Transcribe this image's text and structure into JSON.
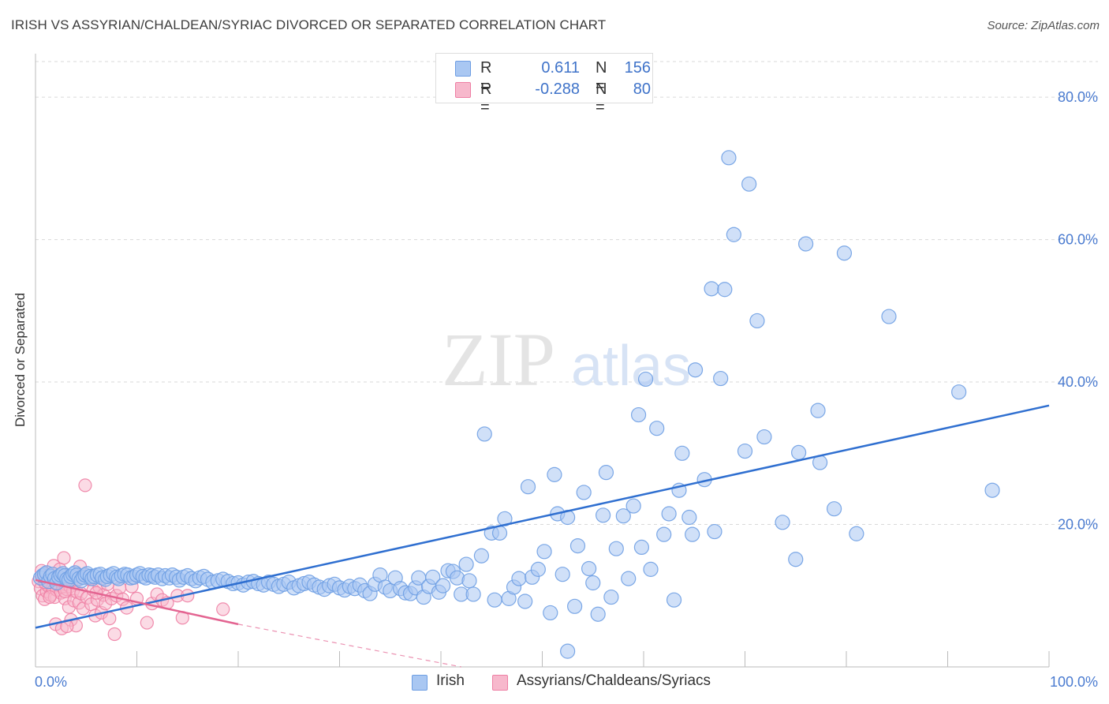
{
  "header": {
    "title": "IRISH VS ASSYRIAN/CHALDEAN/SYRIAC DIVORCED OR SEPARATED CORRELATION CHART",
    "source": "Source: ZipAtlas.com"
  },
  "watermark": {
    "zip": "ZIP",
    "atlas": "atlas"
  },
  "legend": {
    "rows": [
      {
        "r_label": "R =",
        "r_value": "0.611",
        "n_label": "N =",
        "n_value": "156"
      },
      {
        "r_label": "R =",
        "r_value": "-0.288",
        "n_label": "N =",
        "n_value": "80"
      }
    ]
  },
  "bottom_legend": {
    "series1": "Irish",
    "series2": "Assyrians/Chaldeans/Syriacs"
  },
  "colors": {
    "irish_fill": "#a9c7f2",
    "irish_stroke": "#6e9ee3",
    "irish_line": "#2f6fd0",
    "assyrian_fill": "#f7b8cc",
    "assyrian_stroke": "#ee7fa4",
    "assyrian_line": "#e36491",
    "grid": "#d9d9d9",
    "tick_text": "#4a7bd0"
  },
  "chart_data": {
    "type": "scatter",
    "title": "IRISH VS ASSYRIAN/CHALDEAN/SYRIAC DIVORCED OR SEPARATED CORRELATION CHART",
    "xlabel": "",
    "ylabel": "Divorced or Separated",
    "xlim": [
      0,
      100
    ],
    "ylim": [
      0,
      85
    ],
    "x_tick_labels": [
      "0.0%",
      "100.0%"
    ],
    "y_ticks": [
      20,
      40,
      60,
      80
    ],
    "y_tick_labels": [
      "20.0%",
      "40.0%",
      "60.0%",
      "80.0%"
    ],
    "grid": true,
    "legend_position": "top-center",
    "series": [
      {
        "name": "Irish",
        "trendline": [
          [
            0,
            5.5
          ],
          [
            100,
            36.7
          ]
        ],
        "points": [
          [
            0.5,
            12.5
          ],
          [
            0.7,
            12.8
          ],
          [
            0.9,
            13.0
          ],
          [
            1.1,
            13.2
          ],
          [
            1.3,
            12.0
          ],
          [
            1.5,
            12.7
          ],
          [
            1.7,
            13.0
          ],
          [
            1.9,
            12.4
          ],
          [
            2.1,
            11.8
          ],
          [
            2.3,
            12.6
          ],
          [
            2.5,
            12.9
          ],
          [
            2.7,
            13.1
          ],
          [
            2.9,
            12.8
          ],
          [
            3.1,
            12.3
          ],
          [
            3.3,
            12.2
          ],
          [
            3.5,
            12.7
          ],
          [
            3.7,
            13.0
          ],
          [
            3.9,
            13.2
          ],
          [
            4.1,
            12.9
          ],
          [
            4.3,
            12.4
          ],
          [
            4.5,
            12.1
          ],
          [
            4.7,
            12.6
          ],
          [
            4.9,
            12.9
          ],
          [
            5.1,
            13.1
          ],
          [
            5.4,
            12.7
          ],
          [
            5.6,
            12.4
          ],
          [
            5.8,
            12.7
          ],
          [
            6.1,
            12.9
          ],
          [
            6.4,
            13.0
          ],
          [
            6.6,
            12.5
          ],
          [
            6.9,
            12.3
          ],
          [
            7.1,
            12.7
          ],
          [
            7.4,
            12.9
          ],
          [
            7.7,
            13.1
          ],
          [
            8.0,
            12.6
          ],
          [
            8.2,
            12.4
          ],
          [
            8.5,
            12.8
          ],
          [
            8.8,
            13.0
          ],
          [
            9.1,
            12.9
          ],
          [
            9.4,
            12.5
          ],
          [
            9.7,
            12.6
          ],
          [
            10.0,
            12.9
          ],
          [
            10.3,
            13.1
          ],
          [
            10.6,
            12.7
          ],
          [
            10.9,
            12.5
          ],
          [
            11.2,
            12.9
          ],
          [
            11.5,
            12.8
          ],
          [
            11.8,
            12.6
          ],
          [
            12.1,
            12.9
          ],
          [
            12.5,
            12.4
          ],
          [
            12.8,
            12.8
          ],
          [
            13.2,
            12.5
          ],
          [
            13.5,
            12.9
          ],
          [
            13.9,
            12.6
          ],
          [
            14.2,
            12.2
          ],
          [
            14.6,
            12.6
          ],
          [
            15.0,
            12.8
          ],
          [
            15.4,
            12.4
          ],
          [
            15.8,
            12.1
          ],
          [
            16.2,
            12.5
          ],
          [
            16.6,
            12.7
          ],
          [
            17.0,
            12.3
          ],
          [
            17.5,
            11.9
          ],
          [
            18.0,
            12.1
          ],
          [
            18.5,
            12.3
          ],
          [
            19.0,
            12.0
          ],
          [
            19.5,
            11.7
          ],
          [
            20.0,
            11.8
          ],
          [
            20.5,
            11.5
          ],
          [
            21.0,
            11.9
          ],
          [
            21.5,
            12.0
          ],
          [
            22.0,
            11.7
          ],
          [
            22.5,
            11.5
          ],
          [
            23.0,
            11.9
          ],
          [
            23.5,
            11.6
          ],
          [
            24.0,
            11.3
          ],
          [
            24.5,
            11.6
          ],
          [
            25.0,
            11.9
          ],
          [
            25.5,
            11.1
          ],
          [
            26.0,
            11.4
          ],
          [
            26.5,
            11.7
          ],
          [
            27.0,
            11.9
          ],
          [
            27.5,
            11.5
          ],
          [
            28.0,
            11.2
          ],
          [
            28.5,
            10.9
          ],
          [
            29.0,
            11.4
          ],
          [
            29.5,
            11.6
          ],
          [
            30.0,
            11.1
          ],
          [
            30.5,
            10.8
          ],
          [
            31.0,
            11.3
          ],
          [
            31.5,
            11.0
          ],
          [
            32.0,
            11.5
          ],
          [
            32.5,
            10.7
          ],
          [
            33.0,
            10.3
          ],
          [
            33.5,
            11.6
          ],
          [
            34.0,
            12.9
          ],
          [
            34.5,
            11.2
          ],
          [
            35.0,
            10.7
          ],
          [
            35.5,
            12.5
          ],
          [
            36.0,
            11.0
          ],
          [
            36.5,
            10.4
          ],
          [
            37.0,
            10.3
          ],
          [
            37.5,
            11.1
          ],
          [
            37.8,
            12.5
          ],
          [
            38.3,
            9.8
          ],
          [
            38.8,
            11.3
          ],
          [
            39.2,
            12.6
          ],
          [
            39.8,
            10.5
          ],
          [
            40.2,
            11.4
          ],
          [
            40.7,
            13.5
          ],
          [
            41.2,
            13.4
          ],
          [
            41.6,
            12.5
          ],
          [
            42.0,
            10.2
          ],
          [
            42.5,
            14.4
          ],
          [
            42.8,
            12.1
          ],
          [
            43.2,
            10.2
          ],
          [
            44.0,
            15.6
          ],
          [
            44.3,
            32.7
          ],
          [
            45.0,
            18.8
          ],
          [
            45.3,
            9.4
          ],
          [
            45.8,
            18.8
          ],
          [
            46.3,
            20.8
          ],
          [
            46.7,
            9.6
          ],
          [
            47.2,
            11.2
          ],
          [
            47.7,
            12.4
          ],
          [
            48.3,
            9.2
          ],
          [
            48.6,
            25.3
          ],
          [
            49.0,
            12.6
          ],
          [
            49.6,
            13.7
          ],
          [
            50.2,
            16.2
          ],
          [
            50.8,
            7.6
          ],
          [
            51.2,
            27.0
          ],
          [
            51.5,
            21.5
          ],
          [
            52.0,
            13.0
          ],
          [
            52.5,
            21.0
          ],
          [
            53.2,
            8.5
          ],
          [
            53.5,
            17.0
          ],
          [
            54.1,
            24.5
          ],
          [
            54.6,
            13.8
          ],
          [
            55.0,
            11.8
          ],
          [
            55.5,
            7.4
          ],
          [
            56.0,
            21.3
          ],
          [
            56.3,
            27.3
          ],
          [
            56.8,
            9.8
          ],
          [
            57.3,
            16.6
          ],
          [
            58.0,
            21.2
          ],
          [
            58.5,
            12.4
          ],
          [
            59.0,
            22.6
          ],
          [
            59.5,
            35.4
          ],
          [
            59.8,
            16.8
          ],
          [
            60.2,
            40.4
          ],
          [
            60.7,
            13.7
          ],
          [
            61.3,
            33.5
          ],
          [
            62.0,
            18.6
          ],
          [
            62.5,
            21.5
          ],
          [
            63.0,
            9.4
          ],
          [
            63.5,
            24.8
          ],
          [
            63.8,
            30.0
          ],
          [
            64.5,
            21.0
          ],
          [
            64.8,
            18.6
          ],
          [
            65.1,
            41.7
          ],
          [
            66.0,
            26.3
          ],
          [
            66.7,
            53.1
          ],
          [
            67.0,
            19.0
          ],
          [
            67.6,
            40.5
          ],
          [
            68.0,
            53.0
          ],
          [
            68.4,
            71.5
          ],
          [
            68.9,
            60.7
          ],
          [
            70.0,
            30.3
          ],
          [
            70.4,
            67.8
          ],
          [
            71.2,
            48.6
          ],
          [
            71.9,
            32.3
          ],
          [
            73.7,
            20.3
          ],
          [
            75.0,
            15.1
          ],
          [
            75.3,
            30.1
          ],
          [
            76.0,
            59.4
          ],
          [
            77.2,
            36.0
          ],
          [
            77.4,
            28.7
          ],
          [
            78.8,
            22.2
          ],
          [
            79.8,
            58.1
          ],
          [
            81.0,
            18.7
          ],
          [
            84.2,
            49.2
          ],
          [
            91.1,
            38.6
          ],
          [
            94.4,
            24.8
          ],
          [
            52.5,
            2.2
          ]
        ]
      },
      {
        "name": "Assyrians/Chaldeans/Syriacs",
        "trendline": [
          [
            0,
            12.2
          ],
          [
            20,
            6.0
          ]
        ],
        "trendline_extension": [
          [
            20,
            6.0
          ],
          [
            42,
            0
          ]
        ],
        "points": [
          [
            0.3,
            12.0
          ],
          [
            0.5,
            11.0
          ],
          [
            0.6,
            13.5
          ],
          [
            0.7,
            10.0
          ],
          [
            0.8,
            12.6
          ],
          [
            0.9,
            9.5
          ],
          [
            1.0,
            11.7
          ],
          [
            1.1,
            10.6
          ],
          [
            1.2,
            12.1
          ],
          [
            1.3,
            11.3
          ],
          [
            1.4,
            13.0
          ],
          [
            1.5,
            10.1
          ],
          [
            1.6,
            12.4
          ],
          [
            1.7,
            11.1
          ],
          [
            1.8,
            14.2
          ],
          [
            1.9,
            9.8
          ],
          [
            2.0,
            11.8
          ],
          [
            2.1,
            10.8
          ],
          [
            2.2,
            12.7
          ],
          [
            2.3,
            11.5
          ],
          [
            2.4,
            13.7
          ],
          [
            2.5,
            10.4
          ],
          [
            2.6,
            12.0
          ],
          [
            2.7,
            11.2
          ],
          [
            2.8,
            15.3
          ],
          [
            2.9,
            9.6
          ],
          [
            3.0,
            11.6
          ],
          [
            3.1,
            10.9
          ],
          [
            3.2,
            12.5
          ],
          [
            3.3,
            8.4
          ],
          [
            3.4,
            11.3
          ],
          [
            3.5,
            6.6
          ],
          [
            3.6,
            12.1
          ],
          [
            3.7,
            10.7
          ],
          [
            3.8,
            9.3
          ],
          [
            3.9,
            11.9
          ],
          [
            4.0,
            5.8
          ],
          [
            4.1,
            10.5
          ],
          [
            4.2,
            12.8
          ],
          [
            4.3,
            9.0
          ],
          [
            4.5,
            10.3
          ],
          [
            4.7,
            8.2
          ],
          [
            4.9,
            25.5
          ],
          [
            5.1,
            9.7
          ],
          [
            5.3,
            12.3
          ],
          [
            5.5,
            8.8
          ],
          [
            5.7,
            10.8
          ],
          [
            5.9,
            7.2
          ],
          [
            6.1,
            9.4
          ],
          [
            6.3,
            11.2
          ],
          [
            6.5,
            7.6
          ],
          [
            6.7,
            10.1
          ],
          [
            6.9,
            8.9
          ],
          [
            7.1,
            11.6
          ],
          [
            7.3,
            6.8
          ],
          [
            7.5,
            9.6
          ],
          [
            7.8,
            4.6
          ],
          [
            8.0,
            10.0
          ],
          [
            8.3,
            11.1
          ],
          [
            8.6,
            9.5
          ],
          [
            9.0,
            8.3
          ],
          [
            9.5,
            11.3
          ],
          [
            10.0,
            9.6
          ],
          [
            11.0,
            6.2
          ],
          [
            11.5,
            8.9
          ],
          [
            12.0,
            10.2
          ],
          [
            12.5,
            9.4
          ],
          [
            13.0,
            9.0
          ],
          [
            14.0,
            10.0
          ],
          [
            14.5,
            6.9
          ],
          [
            15.0,
            10.0
          ],
          [
            18.5,
            8.1
          ],
          [
            2.0,
            6.0
          ],
          [
            2.6,
            5.4
          ],
          [
            3.1,
            5.7
          ],
          [
            1.4,
            9.8
          ],
          [
            2.9,
            10.6
          ],
          [
            0.9,
            11.9
          ],
          [
            4.4,
            14.1
          ],
          [
            6.0,
            10.4
          ]
        ]
      }
    ]
  }
}
